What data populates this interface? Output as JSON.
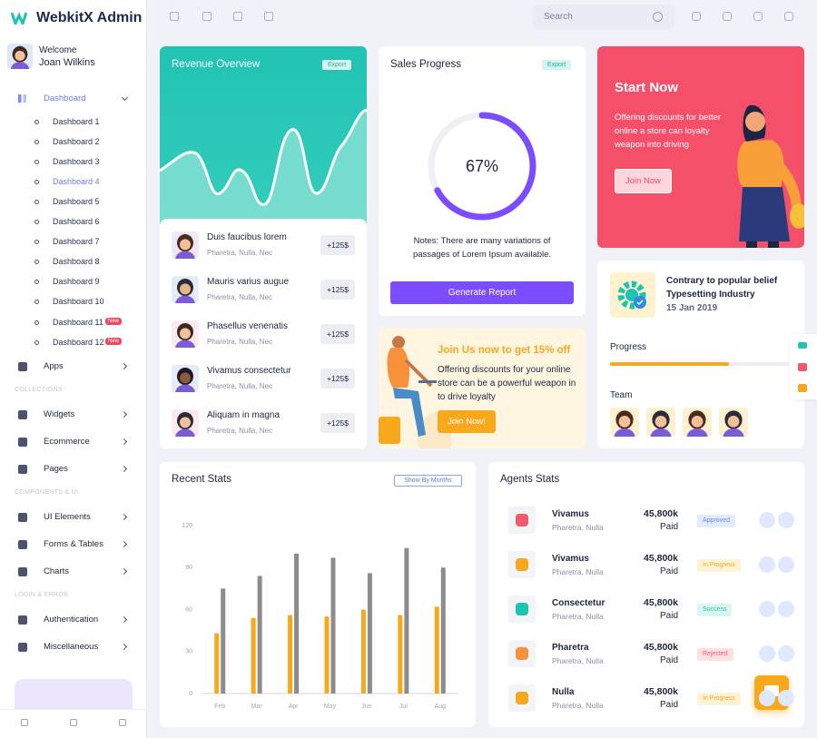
{
  "sidebar": {
    "logo": "WebkitX Admin",
    "welcome": "Welcome",
    "user": "Joan Wilkins",
    "dashboard": "Dashboard",
    "dashboards": [
      {
        "label": "Dashboard 1"
      },
      {
        "label": "Dashboard 2"
      },
      {
        "label": "Dashboard 3"
      },
      {
        "label": "Dashboard 4"
      },
      {
        "label": "Dashboard 5"
      },
      {
        "label": "Dashboard 6"
      },
      {
        "label": "Dashboard 7"
      },
      {
        "label": "Dashboard 8"
      },
      {
        "label": "Dashboard 9"
      },
      {
        "label": "Dashboard 10"
      },
      {
        "label": "Dashboard 11",
        "badge": "New"
      },
      {
        "label": "Dashboard 12",
        "badge": "New"
      }
    ],
    "groups": [
      {
        "items": [
          "Apps"
        ]
      },
      {
        "heading": "COLLECTIONS",
        "items": [
          "Widgets",
          "Ecommerce",
          "Pages"
        ]
      },
      {
        "heading": "COMPONENTS & UI",
        "items": [
          "UI Elements",
          "Forms & Tables",
          "Charts"
        ]
      },
      {
        "heading": "LOGIN & ERROR",
        "items": [
          "Authentication",
          "Miscellaneous"
        ]
      }
    ]
  },
  "topbar": {
    "search": "Search"
  },
  "revenue": {
    "title": "Revenue Overview",
    "export": "Export",
    "items": [
      {
        "name": "Duis faucibus lorem",
        "sub": "Pharetra, Nulla, Nec",
        "amount": "+125$"
      },
      {
        "name": "Mauris varius augue",
        "sub": "Pharetra, Nulla, Nec",
        "amount": "+125$"
      },
      {
        "name": "Phasellus venenatis",
        "sub": "Pharetra, Nulla, Nec",
        "amount": "+125$"
      },
      {
        "name": "Vivamus consectetur",
        "sub": "Pharetra, Nulla, Nec",
        "amount": "+125$"
      },
      {
        "name": "Aliquam in magna",
        "sub": "Pharetra, Nulla, Nec",
        "amount": "+125$"
      }
    ]
  },
  "sales": {
    "title": "Sales Progress",
    "export": "Export",
    "progress": {
      "value": 67,
      "label": "67%"
    },
    "notes": "Notes: There are many variations of passages of Lorem Ipsum available.",
    "button": "Generate Report"
  },
  "start": {
    "title": "Start Now",
    "text": "Offering discounts for better online a store can loyalty weapon into driving",
    "button": "Join Now"
  },
  "promo": {
    "title": "Join Us now to get 15% off",
    "text": "Offering discounts for your online store can be a powerful weapon in to drive loyalty",
    "button": "Join Now!"
  },
  "project": {
    "title_lines": [
      "Contrary to popular belief",
      "Typesetting Industry"
    ],
    "date": "15 Jan 2019",
    "progress_label": "Progress",
    "progress": 66,
    "team": "Team"
  },
  "chart_data": {
    "type": "bar",
    "title": "Recent Stats",
    "filter": "Show By Months",
    "categories": [
      "Feb",
      "Mar",
      "Apr",
      "May",
      "Jun",
      "Jul",
      "Aug"
    ],
    "series": [
      {
        "color": "#f7a81b",
        "values": [
          43,
          54,
          56,
          55,
          60,
          56,
          62
        ]
      },
      {
        "color": "#8c8c8c",
        "values": [
          75,
          84,
          100,
          97,
          86,
          104,
          90
        ]
      }
    ],
    "ylim": [
      0,
      120
    ],
    "yticks": [
      0,
      30,
      60,
      90,
      120
    ],
    "grid": false
  },
  "agents": {
    "title": "Agents Stats",
    "rows": [
      {
        "name": "Vivamus",
        "sub": "Pharetra, Nulla",
        "amount": "45,800k",
        "note": "Paid",
        "status": "Approved",
        "color": "#5b8def",
        "bg": "#e3ecff"
      },
      {
        "name": "Vivamus",
        "sub": "Pharetra, Nulla",
        "amount": "45,800k",
        "note": "Paid",
        "status": "In Progress",
        "color": "#f5a623",
        "bg": "#fff3d6"
      },
      {
        "name": "Consectetur",
        "sub": "Pharetra, Nulla",
        "amount": "45,800k",
        "note": "Paid",
        "status": "Success",
        "color": "#1fbfa8",
        "bg": "#d9f7f2"
      },
      {
        "name": "Pharetra",
        "sub": "Pharetra, Nulla",
        "amount": "45,800k",
        "note": "Paid",
        "status": "Rejected",
        "color": "#f05a6a",
        "bg": "#ffe1e5"
      },
      {
        "name": "Nulla",
        "sub": "Pharetra, Nulla",
        "amount": "45,800k",
        "note": "Paid",
        "status": "In Progress",
        "color": "#f5a623",
        "bg": "#fff3d6"
      }
    ]
  }
}
